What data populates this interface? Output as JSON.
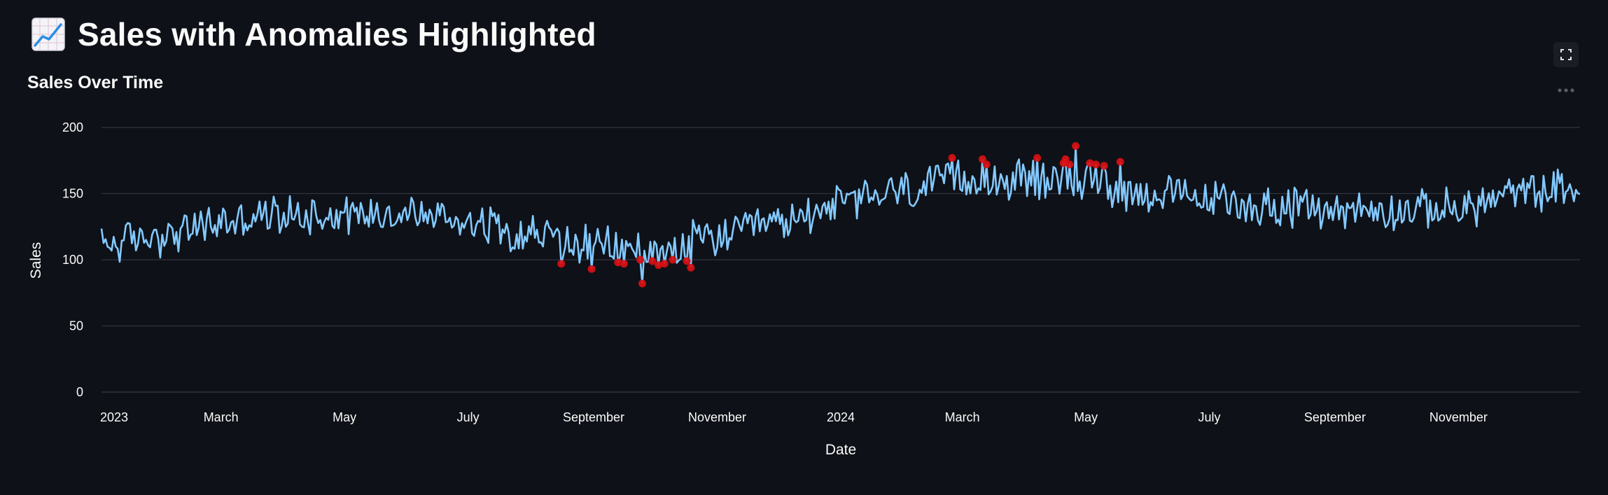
{
  "page": {
    "title": "Sales with Anomalies Highlighted",
    "title_icon": "chart-increasing-icon",
    "subheader": "Sales Over Time"
  },
  "toolbar": {
    "fullscreen_icon": "fullscreen-icon",
    "more_icon": "more-options-icon"
  },
  "colors": {
    "background": "#0e1117",
    "line": "#83c9ff",
    "anomaly": "#d90f14",
    "grid": "#31333f",
    "text": "#fafafa"
  },
  "chart_data": {
    "type": "line",
    "title": "",
    "xlabel": "Date",
    "ylabel": "Sales",
    "x_start": "2023-01-01",
    "x_end": "2024-12-31",
    "ylim": [
      0,
      200
    ],
    "y_ticks": [
      0,
      50,
      100,
      150,
      200
    ],
    "x_ticks": [
      {
        "date": "2023-01-01",
        "label": "2023"
      },
      {
        "date": "2023-03-01",
        "label": "March"
      },
      {
        "date": "2023-05-01",
        "label": "May"
      },
      {
        "date": "2023-07-01",
        "label": "July"
      },
      {
        "date": "2023-09-01",
        "label": "September"
      },
      {
        "date": "2023-11-01",
        "label": "November"
      },
      {
        "date": "2024-01-01",
        "label": "2024"
      },
      {
        "date": "2024-03-01",
        "label": "March"
      },
      {
        "date": "2024-05-01",
        "label": "May"
      },
      {
        "date": "2024-07-01",
        "label": "July"
      },
      {
        "date": "2024-09-01",
        "label": "September"
      },
      {
        "date": "2024-11-01",
        "label": "November"
      }
    ],
    "grid": true,
    "legend": "none",
    "series": [
      {
        "values_trend": [
          {
            "date": "2023-01-01",
            "y": 112
          },
          {
            "date": "2023-02-01",
            "y": 118
          },
          {
            "date": "2023-03-01",
            "y": 128
          },
          {
            "date": "2023-04-01",
            "y": 134
          },
          {
            "date": "2023-05-01",
            "y": 135
          },
          {
            "date": "2023-06-01",
            "y": 135
          },
          {
            "date": "2023-07-01",
            "y": 130
          },
          {
            "date": "2023-08-01",
            "y": 120
          },
          {
            "date": "2023-09-01",
            "y": 110
          },
          {
            "date": "2023-10-01",
            "y": 108
          },
          {
            "date": "2023-11-01",
            "y": 117
          },
          {
            "date": "2023-12-01",
            "y": 127
          },
          {
            "date": "2024-01-01",
            "y": 143
          },
          {
            "date": "2024-02-01",
            "y": 152
          },
          {
            "date": "2024-03-01",
            "y": 160
          },
          {
            "date": "2024-04-01",
            "y": 160
          },
          {
            "date": "2024-05-01",
            "y": 158
          },
          {
            "date": "2024-06-01",
            "y": 150
          },
          {
            "date": "2024-07-01",
            "y": 145
          },
          {
            "date": "2024-08-01",
            "y": 140
          },
          {
            "date": "2024-09-01",
            "y": 138
          },
          {
            "date": "2024-10-01",
            "y": 137
          },
          {
            "date": "2024-11-01",
            "y": 139
          },
          {
            "date": "2024-12-01",
            "y": 150
          },
          {
            "date": "2024-12-31",
            "y": 155
          }
        ]
      }
    ],
    "anomalies": [
      {
        "date": "2023-08-16",
        "y": 97
      },
      {
        "date": "2023-08-31",
        "y": 93
      },
      {
        "date": "2023-09-13",
        "y": 98
      },
      {
        "date": "2023-09-16",
        "y": 97
      },
      {
        "date": "2023-09-24",
        "y": 100
      },
      {
        "date": "2023-09-25",
        "y": 82
      },
      {
        "date": "2023-09-30",
        "y": 99
      },
      {
        "date": "2023-10-03",
        "y": 96
      },
      {
        "date": "2023-10-06",
        "y": 97
      },
      {
        "date": "2023-10-10",
        "y": 100
      },
      {
        "date": "2023-10-17",
        "y": 99
      },
      {
        "date": "2023-10-19",
        "y": 94
      },
      {
        "date": "2024-02-25",
        "y": 177
      },
      {
        "date": "2024-03-11",
        "y": 176
      },
      {
        "date": "2024-03-13",
        "y": 172
      },
      {
        "date": "2024-04-07",
        "y": 177
      },
      {
        "date": "2024-04-20",
        "y": 173
      },
      {
        "date": "2024-04-21",
        "y": 176
      },
      {
        "date": "2024-04-23",
        "y": 172
      },
      {
        "date": "2024-04-26",
        "y": 186
      },
      {
        "date": "2024-05-03",
        "y": 173
      },
      {
        "date": "2024-05-06",
        "y": 172
      },
      {
        "date": "2024-05-10",
        "y": 171
      },
      {
        "date": "2024-05-18",
        "y": 174
      }
    ]
  }
}
